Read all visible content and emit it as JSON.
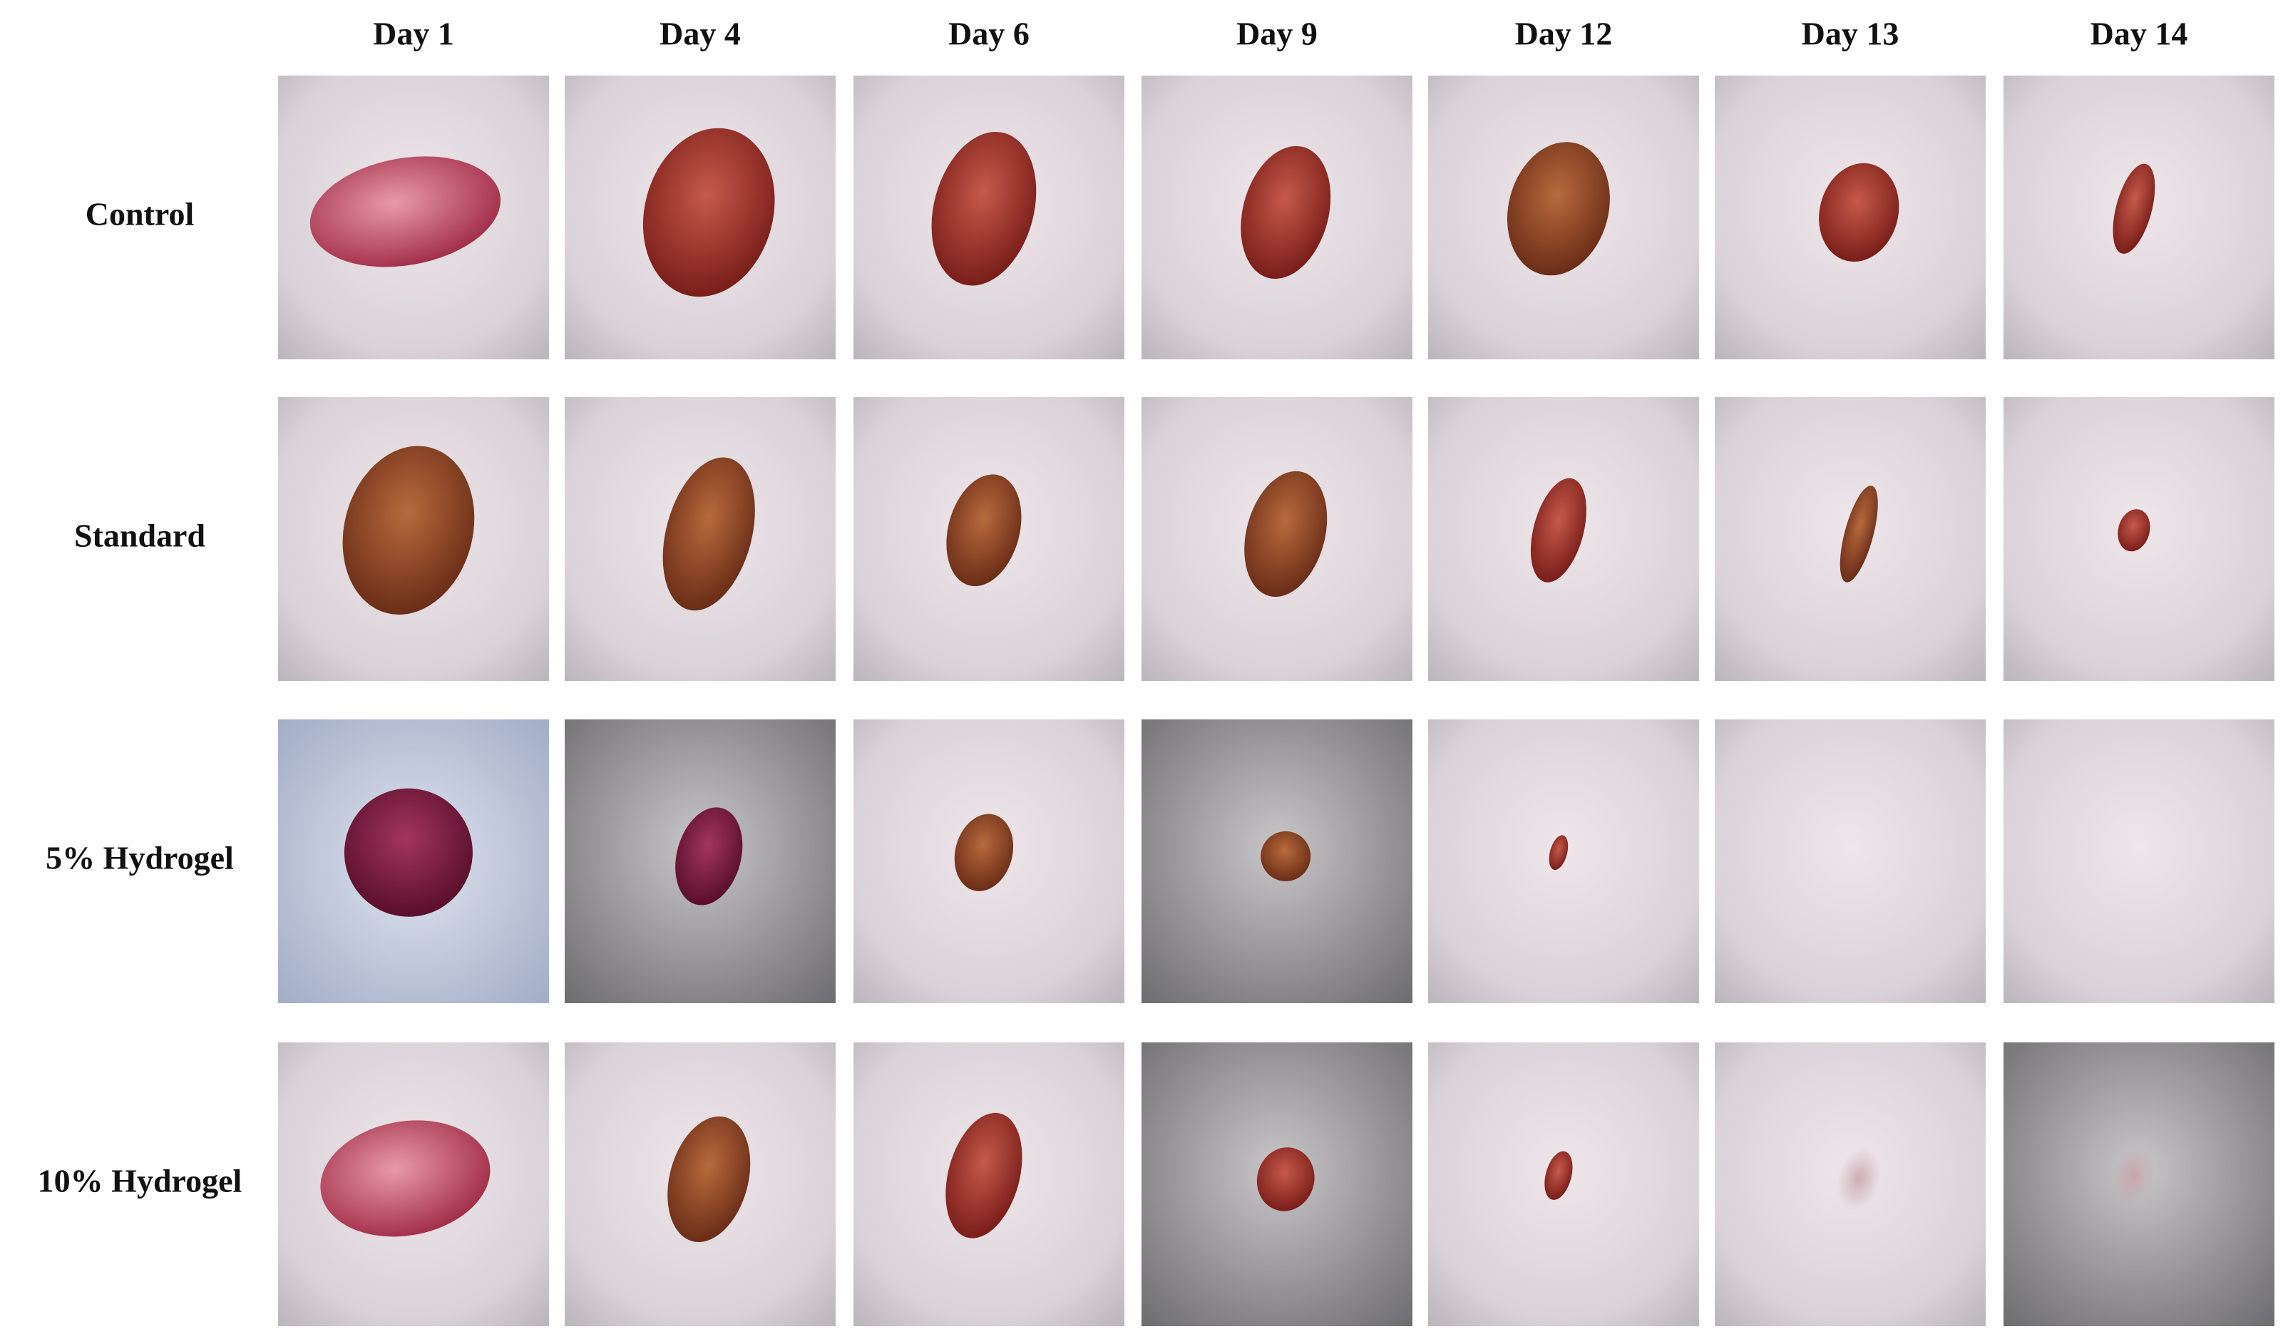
{
  "columns": [
    "Day 1",
    "Day 4",
    "Day 6",
    "Day 9",
    "Day 12",
    "Day 13",
    "Day 14"
  ],
  "rows": [
    "Control",
    "Standard",
    "5% Hydrogel",
    "10% Hydrogel"
  ]
}
